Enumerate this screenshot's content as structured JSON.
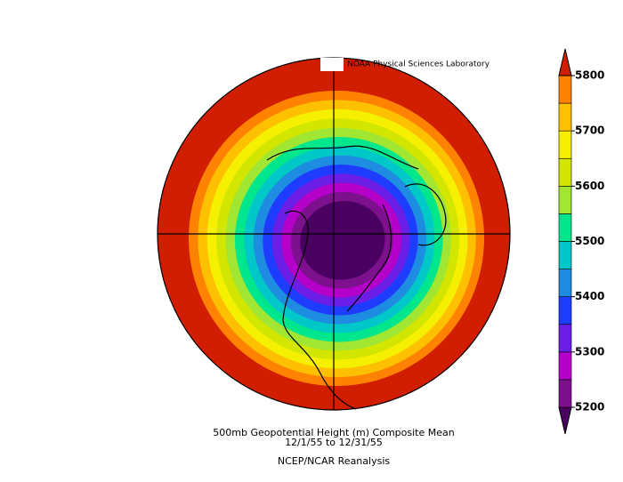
{
  "map": {
    "lab_label": "NOAA Physical Sciences Laboratory",
    "caption": [
      "500mb Geopotential Height (m) Composite Mean",
      "12/1/55  to 12/31/55",
      "NCEP/NCAR Reanalysis"
    ]
  },
  "colorbar": {
    "bounds": [
      5200,
      5250,
      5300,
      5350,
      5400,
      5450,
      5500,
      5550,
      5600,
      5650,
      5700,
      5750,
      5800
    ],
    "colors": [
      "#4a0060",
      "#7d108c",
      "#b400c8",
      "#6a1ee6",
      "#1e3cff",
      "#1e8ce0",
      "#00c8c8",
      "#00e68c",
      "#a0e632",
      "#d2e600",
      "#f5f000",
      "#ffc000",
      "#ff8200",
      "#d21e00"
    ],
    "ticks": [
      5200,
      5300,
      5400,
      5500,
      5600,
      5700,
      5800
    ]
  }
}
